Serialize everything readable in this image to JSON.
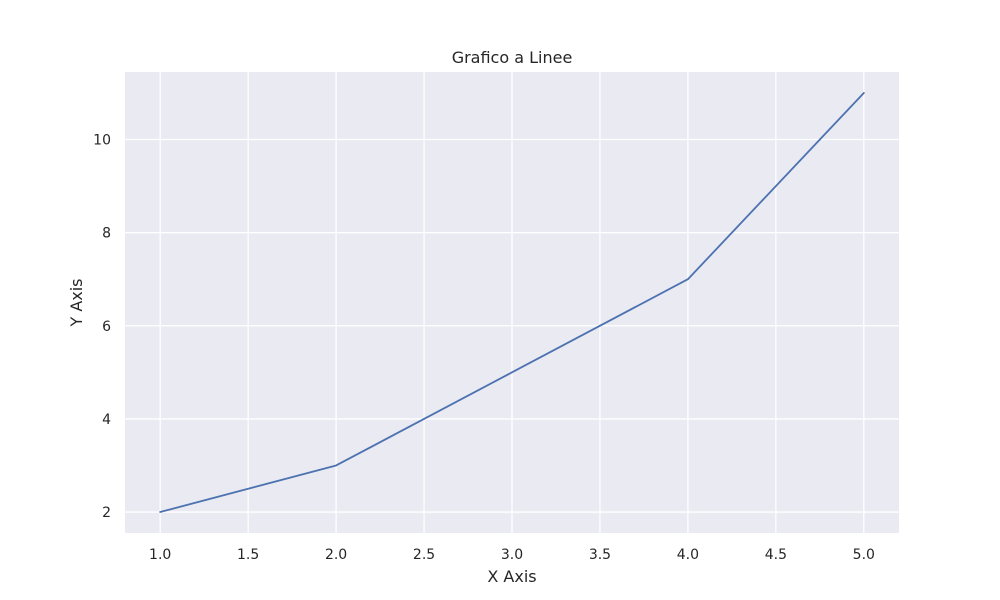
{
  "chart_data": {
    "type": "line",
    "title": "Grafico a Linee",
    "xlabel": "X Axis",
    "ylabel": "Y Axis",
    "x": [
      1,
      2,
      3,
      4,
      5
    ],
    "series": [
      {
        "values": [
          2,
          3,
          5,
          7,
          11
        ]
      }
    ],
    "xlim": [
      0.8,
      5.2
    ],
    "ylim": [
      1.55,
      11.45
    ],
    "x_ticks": [
      1.0,
      1.5,
      2.0,
      2.5,
      3.0,
      3.5,
      4.0,
      4.5,
      5.0
    ],
    "x_tick_labels": [
      "1.0",
      "1.5",
      "2.0",
      "2.5",
      "3.0",
      "3.5",
      "4.0",
      "4.5",
      "5.0"
    ],
    "y_ticks": [
      2,
      4,
      6,
      8,
      10
    ],
    "y_tick_labels": [
      "2",
      "4",
      "6",
      "8",
      "10"
    ],
    "grid": true,
    "colors": {
      "plot_background": "#eaeaf2",
      "grid": "#ffffff",
      "line": "#4c72b0"
    }
  }
}
